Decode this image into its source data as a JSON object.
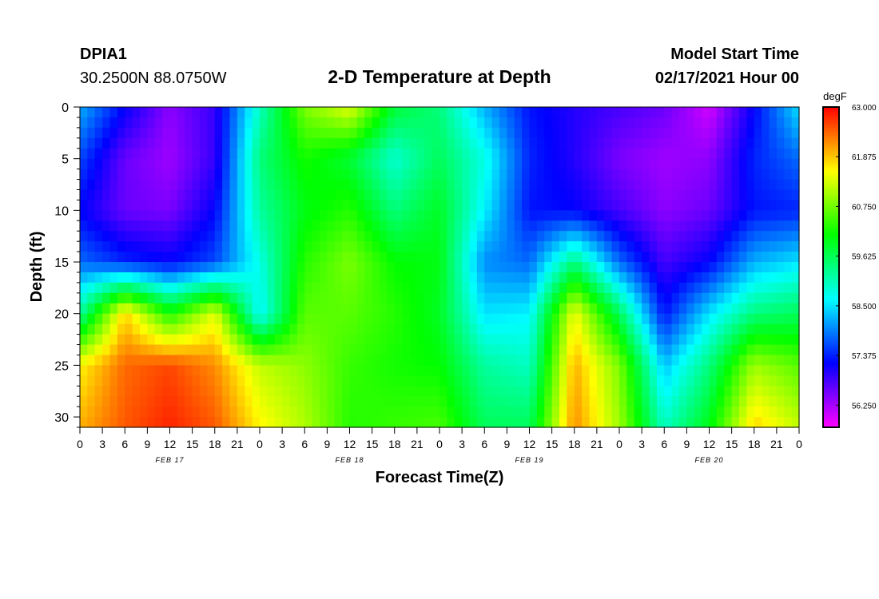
{
  "header": {
    "station_id": "DPIA1",
    "coordinates": "30.2500N 88.0750W",
    "title": "2-D Temperature at Depth",
    "start_label": "Model Start Time",
    "start_value": "02/17/2021 Hour 00"
  },
  "chart_data": {
    "type": "heatmap",
    "title": "2-D Temperature at Depth",
    "xlabel": "Forecast Time(Z)",
    "ylabel": "Depth (ft)",
    "x_range_hours": [
      0,
      96
    ],
    "y_range_ft": [
      0,
      31
    ],
    "x_tick_labels": [
      "0",
      "3",
      "6",
      "9",
      "12",
      "15",
      "18",
      "21",
      "0",
      "3",
      "6",
      "9",
      "12",
      "15",
      "18",
      "21",
      "0",
      "3",
      "6",
      "9",
      "12",
      "15",
      "18",
      "21",
      "0",
      "3",
      "6",
      "9",
      "12",
      "15",
      "18",
      "21",
      "0"
    ],
    "day_labels": [
      {
        "label": "FEB 17",
        "hour": 12
      },
      {
        "label": "FEB 18",
        "hour": 36
      },
      {
        "label": "FEB 19",
        "hour": 60
      },
      {
        "label": "FEB 20",
        "hour": 84
      }
    ],
    "y_ticks": [
      0,
      5,
      10,
      15,
      20,
      25,
      30
    ],
    "y_tick_labels": [
      "0",
      "5",
      "10",
      "15",
      "20",
      "25",
      "30"
    ],
    "colorbar": {
      "unit": "degF",
      "min": 55.75,
      "max": 63.0,
      "ticks": [
        63.0,
        61.875,
        60.75,
        59.625,
        58.5,
        57.375,
        56.25
      ],
      "tick_labels": [
        "63.000",
        "61.875",
        "60.750",
        "59.625",
        "58.500",
        "57.375",
        "56.250"
      ]
    },
    "profiles": {
      "depth_ft": [
        0,
        5,
        10,
        15,
        20,
        25,
        31
      ],
      "hours": [
        0,
        6,
        12,
        18,
        24,
        30,
        36,
        42,
        48,
        54,
        60,
        66,
        72,
        78,
        84,
        90,
        96
      ],
      "temperature_degF": [
        [
          58.2,
          57.6,
          57.2,
          57.8,
          59.2,
          61.6,
          62.0
        ],
        [
          57.2,
          56.6,
          56.6,
          57.4,
          61.8,
          62.4,
          62.5
        ],
        [
          56.4,
          56.3,
          56.5,
          57.2,
          60.2,
          62.6,
          62.8
        ],
        [
          56.9,
          56.9,
          57.2,
          57.6,
          61.4,
          62.2,
          62.5
        ],
        [
          59.0,
          59.4,
          59.2,
          58.8,
          58.6,
          61.2,
          61.6
        ],
        [
          60.8,
          60.2,
          60.0,
          60.3,
          60.6,
          60.9,
          61.1
        ],
        [
          61.4,
          59.8,
          60.3,
          60.8,
          60.6,
          60.4,
          60.3
        ],
        [
          59.8,
          58.9,
          59.4,
          60.1,
          60.3,
          60.2,
          60.4
        ],
        [
          59.4,
          59.6,
          59.9,
          60.0,
          59.9,
          60.1,
          60.5
        ],
        [
          58.2,
          58.8,
          58.6,
          58.0,
          58.5,
          59.2,
          59.6
        ],
        [
          57.3,
          57.4,
          57.3,
          57.8,
          58.6,
          59.0,
          59.6
        ],
        [
          57.0,
          57.0,
          57.2,
          59.4,
          61.5,
          62.0,
          62.2
        ],
        [
          56.8,
          56.5,
          56.8,
          57.8,
          59.6,
          60.8,
          61.0
        ],
        [
          56.6,
          56.3,
          56.4,
          56.8,
          57.3,
          58.3,
          59.0
        ],
        [
          56.0,
          56.4,
          56.6,
          57.2,
          58.5,
          59.4,
          60.0
        ],
        [
          57.2,
          57.4,
          57.3,
          58.2,
          59.4,
          61.0,
          61.8
        ],
        [
          58.5,
          57.8,
          57.4,
          58.5,
          59.6,
          60.6,
          61.2
        ]
      ]
    }
  }
}
